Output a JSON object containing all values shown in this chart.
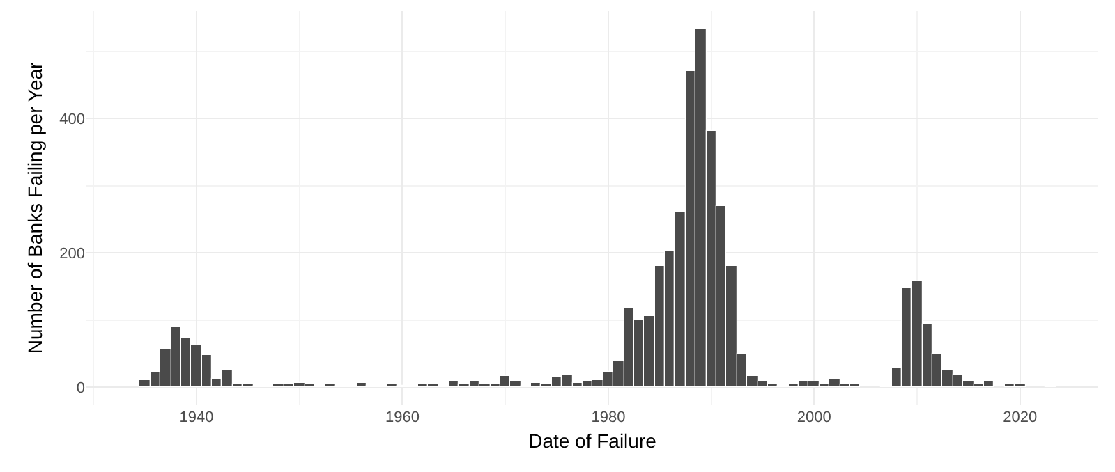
{
  "chart_data": {
    "type": "histogram",
    "xlabel": "Date of Failure",
    "ylabel": "Number of Banks Failing per Year",
    "bins": [
      1934.5,
      1935.5,
      1936.5,
      1937.5,
      1938.5,
      1939.5,
      1940.5,
      1941.5,
      1942.5,
      1943.5,
      1944.5,
      1945.5,
      1946.5,
      1947.5,
      1948.5,
      1949.5,
      1950.5,
      1951.5,
      1952.5,
      1953.5,
      1954.5,
      1955.5,
      1956.5,
      1957.5,
      1958.5,
      1959.5,
      1960.5,
      1961.5,
      1962.5,
      1963.5,
      1964.5,
      1965.5,
      1966.5,
      1967.5,
      1968.5,
      1969.5,
      1970.5,
      1971.5,
      1972.5,
      1973.5,
      1974.5,
      1975.5,
      1976.5,
      1977.5,
      1978.5,
      1979.5,
      1980.5,
      1981.5,
      1982.5,
      1983.5,
      1984.5,
      1985.5,
      1986.5,
      1987.5,
      1988.5,
      1989.5,
      1990.5,
      1991.5,
      1992.5,
      1993.5,
      1994.5,
      1995.5,
      1996.5,
      1997.5,
      1998.5,
      1999.5,
      2000.5,
      2001.5,
      2002.5,
      2003.5,
      2004.5,
      2005.5,
      2006.5,
      2007.5,
      2008.5,
      2009.5,
      2010.5,
      2011.5,
      2012.5,
      2013.5,
      2014.5,
      2015.5,
      2016.5,
      2017.5,
      2018.5,
      2019.5,
      2020.5,
      2021.5,
      2022.5,
      2023.5
    ],
    "values": [
      10,
      22,
      56,
      89,
      72,
      62,
      47,
      12,
      25,
      4,
      4,
      2,
      2,
      4,
      4,
      7,
      4,
      2,
      4,
      2,
      2,
      6,
      2,
      2,
      4,
      2,
      2,
      4,
      4,
      2,
      8,
      5,
      9,
      4,
      4,
      16,
      9,
      3,
      6,
      4,
      14,
      19,
      6,
      9,
      10,
      22,
      40,
      119,
      99,
      105,
      180,
      204,
      261,
      470,
      534,
      382,
      270,
      180,
      50,
      16,
      8,
      5,
      2,
      4,
      8,
      8,
      4,
      12,
      4,
      4,
      0,
      0,
      3,
      30,
      147,
      157,
      93,
      50,
      24,
      18,
      8,
      5,
      8,
      0,
      4,
      4,
      0,
      0,
      2
    ],
    "color": "#4a4a4a",
    "xlim": [
      1929.3,
      2027.6
    ],
    "xticks": [
      1940,
      1960,
      1980,
      2000,
      2020
    ],
    "ylim": [
      -27,
      560
    ],
    "yticks": [
      0,
      200,
      400
    ],
    "grid": true
  }
}
